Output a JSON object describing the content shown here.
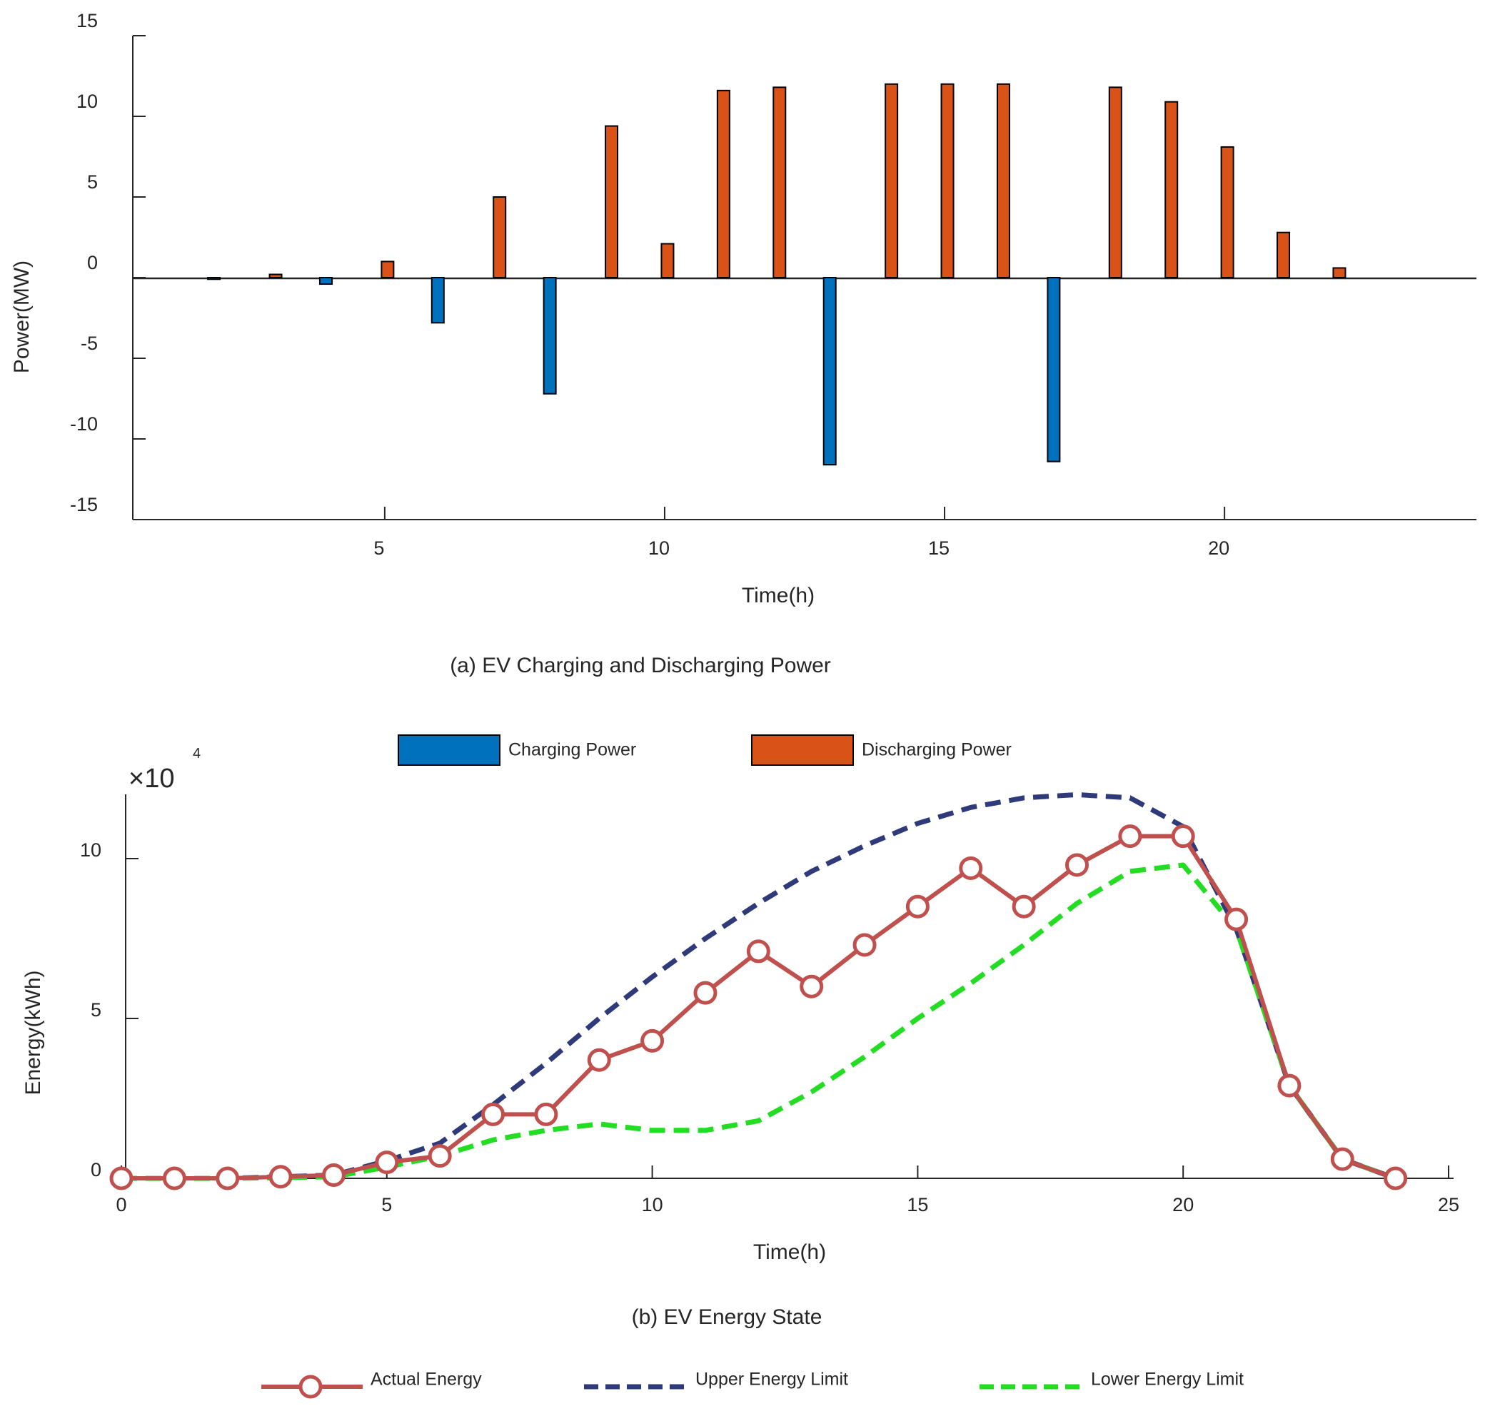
{
  "chart_data": [
    {
      "type": "bar",
      "title": "(a) EV Charging and Discharging Power",
      "xlabel": "Time(h)",
      "ylabel": "Power(MW)",
      "xlim": [
        0.5,
        24.5
      ],
      "ylim": [
        -15,
        15
      ],
      "xticks": [
        5,
        10,
        15,
        20
      ],
      "yticks": [
        -15,
        -10,
        -5,
        0,
        5,
        10,
        15
      ],
      "series": [
        {
          "name": "Charging Power",
          "color": "#0072bd",
          "x": [
            2,
            4,
            6,
            8,
            13,
            17
          ],
          "values": [
            -0.1,
            -0.4,
            -2.8,
            -7.2,
            -11.6,
            -11.4
          ]
        },
        {
          "name": "Discharging Power",
          "color": "#d95319",
          "x": [
            3,
            5,
            7,
            9,
            10,
            11,
            12,
            14,
            15,
            16,
            18,
            19,
            20,
            21,
            22
          ],
          "values": [
            0.2,
            1.0,
            5.0,
            9.4,
            2.1,
            11.6,
            11.8,
            12.0,
            12.0,
            12.0,
            11.8,
            10.9,
            8.1,
            2.8,
            0.6
          ]
        }
      ],
      "legend": {
        "position": "below",
        "entries": [
          "Charging Power",
          "Discharging Power"
        ]
      }
    },
    {
      "type": "line",
      "title": "(b) EV Energy State",
      "xlabel": "Time(h)",
      "ylabel": "Energy(kWh)",
      "y_multiplier": "×10",
      "y_multiplier_exponent": "4",
      "xlim": [
        0,
        25
      ],
      "ylim": [
        0,
        12
      ],
      "xticks": [
        0,
        5,
        10,
        15,
        20,
        25
      ],
      "yticks": [
        0,
        5,
        10
      ],
      "x": [
        0,
        1,
        2,
        3,
        4,
        5,
        6,
        7,
        8,
        9,
        10,
        11,
        12,
        13,
        14,
        15,
        16,
        17,
        18,
        19,
        20,
        21,
        22,
        23,
        24
      ],
      "series": [
        {
          "name": "Actual Energy",
          "color": "#c0504d",
          "style": "solid-circle",
          "values": [
            0,
            0,
            0,
            0.05,
            0.1,
            0.5,
            0.7,
            2.0,
            2.0,
            3.7,
            4.3,
            5.8,
            7.1,
            6.0,
            7.3,
            8.5,
            9.7,
            8.5,
            9.8,
            10.7,
            10.7,
            8.1,
            2.9,
            0.6,
            0
          ]
        },
        {
          "name": "Upper Energy Limit",
          "color": "#2e3a7a",
          "style": "dashed",
          "values": [
            0,
            0,
            0,
            0.05,
            0.1,
            0.55,
            1.1,
            2.3,
            3.6,
            5.0,
            6.3,
            7.5,
            8.6,
            9.6,
            10.4,
            11.1,
            11.6,
            11.9,
            12.0,
            11.9,
            11.0,
            7.8,
            2.9,
            0.6,
            0
          ]
        },
        {
          "name": "Lower Energy Limit",
          "color": "#22dd22",
          "style": "dashed",
          "values": [
            0,
            0,
            0,
            0.02,
            0.05,
            0.35,
            0.7,
            1.2,
            1.5,
            1.7,
            1.5,
            1.5,
            1.8,
            2.7,
            3.8,
            5.0,
            6.1,
            7.3,
            8.6,
            9.6,
            9.8,
            7.8,
            2.9,
            0.6,
            0
          ]
        }
      ],
      "legend": {
        "position": "below",
        "entries": [
          "Actual Energy",
          "Upper Energy Limit",
          "Lower Energy Limit"
        ]
      }
    }
  ]
}
